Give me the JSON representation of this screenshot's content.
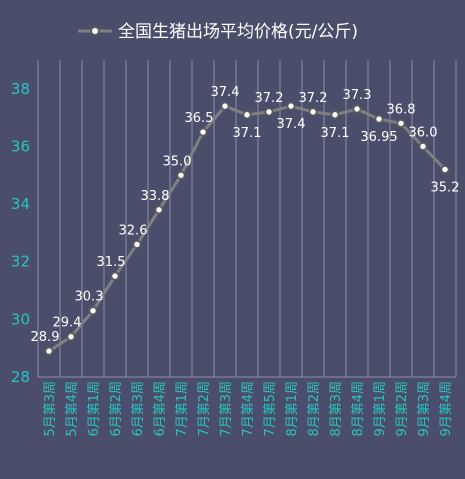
{
  "chart_data": {
    "type": "line",
    "title": "",
    "xlabel": "",
    "ylabel": "",
    "ylim": [
      28,
      39
    ],
    "yticks": [
      28,
      30,
      32,
      34,
      36,
      38
    ],
    "grid": "vertical",
    "legend_position": "top",
    "series": [
      {
        "name": "全国生猪出场平均价格(元/公斤)",
        "color": "#7f8080",
        "marker_color": "#ffffff",
        "values": [
          28.9,
          29.4,
          30.3,
          31.5,
          32.6,
          33.8,
          35.0,
          36.5,
          37.4,
          37.1,
          37.2,
          37.4,
          37.2,
          37.1,
          37.3,
          36.95,
          36.8,
          36.0,
          35.2
        ],
        "labels": [
          "28.9",
          "29.4",
          "30.3",
          "31.5",
          "32.6",
          "33.8",
          "35.0",
          "36.5",
          "37.4",
          "37.1",
          "37.2",
          "37.4",
          "37.2",
          "37.1",
          "37.3",
          "36.95",
          "36.8",
          "36.0",
          "35.2"
        ]
      }
    ],
    "categories": [
      "5月第3周",
      "5月第4周",
      "6月第1周",
      "6月第2周",
      "6月第3周",
      "6月第4周",
      "7月第1周",
      "7月第2周",
      "7月第3周",
      "7月第4周",
      "7月第5周",
      "8月第1周",
      "8月第2周",
      "8月第3周",
      "8月第4周",
      "9月第1周",
      "9月第2周",
      "9月第3周",
      "9月第4周"
    ]
  },
  "colors": {
    "background": "#4a4e6a",
    "axis_text": "#29c4c0",
    "grid": "#8a8ea6",
    "label_text": "#ffffff"
  }
}
